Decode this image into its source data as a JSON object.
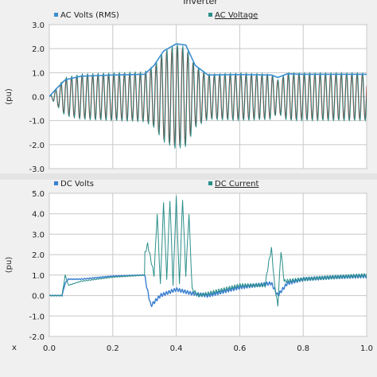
{
  "window": {
    "title": "Inverter"
  },
  "x_axis": {
    "label": "x",
    "ticks": [
      "0.0",
      "0.2",
      "0.4",
      "0.6",
      "0.8",
      "1.0"
    ]
  },
  "colors": {
    "background": "#f0f0f0",
    "plot_bg": "#ffffff",
    "grid": "#c8c8c8",
    "ac_rms": "#3a8fd0",
    "ac_voltage": "#2a8f8a",
    "ac_voltage_alt": "#8a2a20",
    "dc_volts": "#3a7fd0",
    "dc_current": "#2a8f8a"
  },
  "chart_data": [
    {
      "type": "line",
      "ylabel": "(pu)",
      "xlim": [
        0.0,
        1.0
      ],
      "ylim": [
        -3.0,
        3.0
      ],
      "yticks": [
        "3.0",
        "2.0",
        "1.0",
        "0.0",
        "-1.0",
        "-2.0",
        "-3.0"
      ],
      "grid": true,
      "legend": "top",
      "series": [
        {
          "name": "AC Volts (RMS)",
          "x": [
            0.0,
            0.02,
            0.05,
            0.1,
            0.2,
            0.3,
            0.33,
            0.36,
            0.4,
            0.43,
            0.46,
            0.5,
            0.6,
            0.7,
            0.72,
            0.75,
            0.8,
            0.9,
            1.0
          ],
          "values": [
            0.0,
            0.3,
            0.7,
            0.85,
            0.9,
            0.93,
            1.3,
            1.9,
            2.2,
            2.15,
            1.3,
            0.9,
            0.92,
            0.9,
            0.8,
            0.95,
            0.93,
            0.93,
            0.93
          ]
        },
        {
          "name": "AC Voltage",
          "envelope": {
            "x": [
              0.0,
              0.05,
              0.1,
              0.3,
              0.33,
              0.36,
              0.4,
              0.43,
              0.46,
              0.5,
              0.6,
              0.7,
              0.72,
              0.75,
              0.8,
              1.0
            ],
            "amplitude": [
              0.0,
              0.8,
              0.95,
              1.05,
              1.3,
              1.9,
              2.2,
              2.1,
              1.3,
              0.95,
              1.0,
              0.95,
              0.7,
              1.0,
              1.0,
              1.0
            ]
          },
          "cycles": 60
        }
      ]
    },
    {
      "type": "line",
      "ylabel": "(pu)",
      "xlim": [
        0.0,
        1.0
      ],
      "ylim": [
        -2.0,
        5.0
      ],
      "yticks": [
        "5.0",
        "4.0",
        "3.0",
        "2.0",
        "1.0",
        "0.0",
        "-1.0",
        "-2.0"
      ],
      "grid": true,
      "legend": "top",
      "series": [
        {
          "name": "DC Volts",
          "x": [
            0.0,
            0.04,
            0.05,
            0.06,
            0.1,
            0.2,
            0.3,
            0.31,
            0.32,
            0.35,
            0.4,
            0.45,
            0.5,
            0.6,
            0.7,
            0.72,
            0.75,
            0.8,
            0.9,
            1.0
          ],
          "values": [
            0.0,
            0.0,
            0.6,
            0.8,
            0.8,
            0.95,
            1.0,
            0.2,
            -0.5,
            0.0,
            0.3,
            0.1,
            0.0,
            0.4,
            0.6,
            0.0,
            0.6,
            0.8,
            0.9,
            0.95
          ]
        },
        {
          "name": "DC Current",
          "x": [
            0.0,
            0.04,
            0.05,
            0.06,
            0.1,
            0.2,
            0.3,
            0.3,
            0.31,
            0.33,
            0.34,
            0.35,
            0.36,
            0.37,
            0.38,
            0.39,
            0.4,
            0.41,
            0.42,
            0.43,
            0.44,
            0.45,
            0.47,
            0.5,
            0.6,
            0.68,
            0.69,
            0.7,
            0.71,
            0.72,
            0.73,
            0.74,
            0.8,
            0.9,
            1.0
          ],
          "values": [
            0.0,
            0.0,
            1.0,
            0.5,
            0.7,
            0.9,
            1.0,
            2.0,
            2.5,
            1.0,
            4.0,
            0.5,
            4.5,
            0.8,
            4.7,
            0.5,
            4.8,
            0.5,
            4.7,
            1.0,
            4.0,
            0.3,
            0.0,
            0.1,
            0.5,
            0.5,
            1.5,
            2.3,
            0.5,
            -0.5,
            2.2,
            0.7,
            0.8,
            0.9,
            1.0
          ]
        }
      ]
    }
  ]
}
